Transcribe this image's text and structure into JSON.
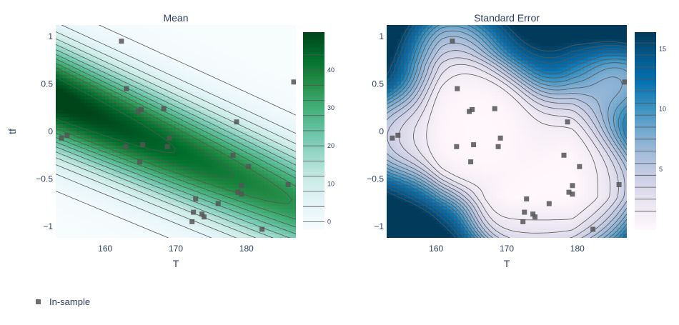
{
  "legend": {
    "label": "In-sample",
    "marker_color": "#555555"
  },
  "chart_data": [
    {
      "type": "heatmap",
      "title": "Mean",
      "xlabel": "T",
      "ylabel": "tf",
      "xlim": [
        153,
        187
      ],
      "ylim": [
        -1.12,
        1.12
      ],
      "xticks": [
        160,
        170,
        180
      ],
      "yticks": [
        -1,
        -0.5,
        0,
        0.5,
        1
      ],
      "colorbar": {
        "ticks": [
          0,
          10,
          20,
          30,
          40
        ],
        "range": [
          -2,
          50
        ],
        "colors": [
          "#f7fcfd",
          "#e5f5f9",
          "#ccece6",
          "#99d8c9",
          "#66c2a4",
          "#41ae76",
          "#238b45",
          "#006d2c",
          "#00441b"
        ]
      },
      "contour_color": "#555555"
    },
    {
      "type": "heatmap",
      "title": "Standard Error",
      "xlabel": "T",
      "ylabel": "",
      "xlim": [
        153,
        187
      ],
      "ylim": [
        -1.12,
        1.12
      ],
      "xticks": [
        160,
        170,
        180
      ],
      "yticks": [
        -1,
        -0.5,
        0,
        0.5,
        1
      ],
      "colorbar": {
        "ticks": [
          5,
          10,
          15
        ],
        "range": [
          0,
          16.4
        ],
        "colors": [
          "#fff7fb",
          "#ece7f2",
          "#d0d1e6",
          "#a6bddb",
          "#74a9cf",
          "#3690c0",
          "#0570b0",
          "#045a8d",
          "#023858"
        ]
      },
      "contour_color": "#555555"
    }
  ],
  "points": [
    {
      "T": 162.3,
      "tf": 0.95
    },
    {
      "T": 163.0,
      "tf": 0.45
    },
    {
      "T": 164.7,
      "tf": 0.21
    },
    {
      "T": 165.1,
      "tf": 0.23
    },
    {
      "T": 168.3,
      "tf": 0.24
    },
    {
      "T": 178.6,
      "tf": 0.1
    },
    {
      "T": 186.7,
      "tf": 0.52
    },
    {
      "T": 153.8,
      "tf": -0.07
    },
    {
      "T": 154.6,
      "tf": -0.04
    },
    {
      "T": 162.9,
      "tf": -0.16
    },
    {
      "T": 165.3,
      "tf": -0.14
    },
    {
      "T": 169.1,
      "tf": -0.07
    },
    {
      "T": 168.8,
      "tf": -0.16
    },
    {
      "T": 164.9,
      "tf": -0.32
    },
    {
      "T": 178.1,
      "tf": -0.25
    },
    {
      "T": 180.3,
      "tf": -0.37
    },
    {
      "T": 179.3,
      "tf": -0.57
    },
    {
      "T": 178.8,
      "tf": -0.64
    },
    {
      "T": 179.3,
      "tf": -0.66
    },
    {
      "T": 172.8,
      "tf": -0.71
    },
    {
      "T": 176.0,
      "tf": -0.76
    },
    {
      "T": 172.5,
      "tf": -0.85
    },
    {
      "T": 173.7,
      "tf": -0.87
    },
    {
      "T": 174.0,
      "tf": -0.9
    },
    {
      "T": 172.3,
      "tf": -0.95
    },
    {
      "T": 182.2,
      "tf": -1.03
    },
    {
      "T": 185.9,
      "tf": -0.56
    }
  ]
}
